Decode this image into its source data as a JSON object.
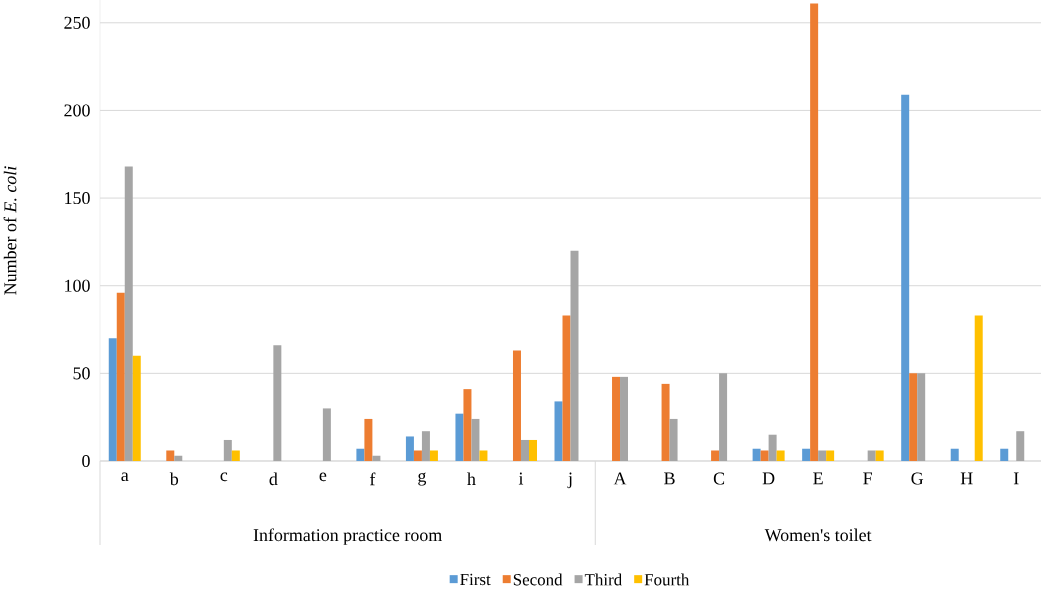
{
  "chart_data": {
    "type": "bar",
    "ylabel": "Number of *E. coli*",
    "categories": [
      "a",
      "b",
      "c",
      "d",
      "e",
      "f",
      "g",
      "h",
      "i",
      "j",
      "A",
      "B",
      "C",
      "D",
      "E",
      "F",
      "G",
      "H",
      "I"
    ],
    "series": [
      {
        "name": "First",
        "color": "#5b9bd5",
        "values": [
          70,
          0,
          0,
          0,
          0,
          7,
          14,
          27,
          0,
          34,
          0,
          0,
          0,
          7,
          7,
          0,
          209,
          7,
          7
        ]
      },
      {
        "name": "Second",
        "color": "#ed7d31",
        "values": [
          96,
          6,
          0,
          0,
          0,
          24,
          6,
          41,
          63,
          83,
          48,
          44,
          6,
          6,
          261,
          0,
          50,
          0,
          0
        ]
      },
      {
        "name": "Third",
        "color": "#a5a5a5",
        "values": [
          168,
          3,
          12,
          66,
          30,
          3,
          17,
          24,
          12,
          120,
          48,
          24,
          50,
          15,
          6,
          6,
          50,
          0,
          17
        ]
      },
      {
        "name": "Fourth",
        "color": "#ffc000",
        "values": [
          60,
          0,
          6,
          0,
          0,
          0,
          6,
          6,
          12,
          0,
          0,
          0,
          0,
          6,
          6,
          6,
          0,
          83,
          0
        ]
      }
    ],
    "ylim": [
      0,
      263
    ],
    "yticks": [
      0,
      50,
      100,
      150,
      200,
      250
    ],
    "grid": "y",
    "legend": "bottom",
    "annotations": [
      "Information practice room",
      "Women's toilet"
    ]
  }
}
